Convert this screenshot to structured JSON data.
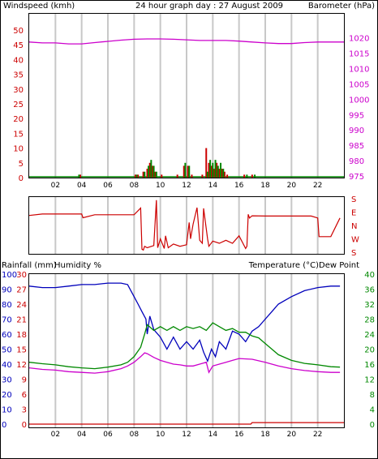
{
  "colors": {
    "wind": "#cc0000",
    "gust": "#008800",
    "baro": "#cc00cc",
    "dir": "#cc0000",
    "rain": "#cc0000",
    "humidity": "#0000bb",
    "temperature": "#008800",
    "dewpoint": "#cc00cc",
    "grid": "#c8c8c8",
    "text": "#000000"
  },
  "chart_data": [
    {
      "type": "bar",
      "title": "24 hour graph day : 27 August 2009",
      "ylabel_left": "Windspeed (kmh)",
      "ylabel_right": "Barometer (hPa)",
      "xticks": [
        "02",
        "04",
        "06",
        "08",
        "10",
        "12",
        "14",
        "16",
        "18",
        "20",
        "22"
      ],
      "yticks_left": [
        "50",
        "45",
        "40",
        "35",
        "30",
        "25",
        "20",
        "15",
        "10",
        "5",
        "0"
      ],
      "yticks_right": [
        "1020",
        "1015",
        "1010",
        "1005",
        "1000",
        "995",
        "990",
        "985",
        "980",
        "975"
      ],
      "ylim_left": [
        0,
        50
      ],
      "ylim_right": [
        974.5,
        1022.5
      ],
      "grid": true,
      "series": [
        {
          "name": "",
          "style": "line",
          "axis": "right",
          "x": [
            0,
            1,
            2,
            3,
            4,
            5,
            6,
            7,
            8,
            9,
            10,
            11,
            12,
            13,
            14,
            15,
            16,
            17,
            18,
            19,
            20,
            21,
            22,
            23,
            24
          ],
          "y": [
            1018.6,
            1018.3,
            1018.3,
            1018.0,
            1018.0,
            1018.4,
            1018.8,
            1019.2,
            1019.5,
            1019.6,
            1019.6,
            1019.5,
            1019.3,
            1019.1,
            1019.1,
            1019.1,
            1018.9,
            1018.6,
            1018.3,
            1018.1,
            1018.1,
            1018.4,
            1018.6,
            1018.6,
            1018.6
          ]
        },
        {
          "name": "",
          "style": "bar",
          "axis": "left",
          "x": [
            3.9,
            8.1,
            8.3,
            8.7,
            9.0,
            9.2,
            9.4,
            9.6,
            10.1,
            11.3,
            11.8,
            12.1,
            12.4,
            13.2,
            13.5,
            13.7,
            13.9,
            14.1,
            14.3,
            14.5,
            14.7,
            14.9,
            15.1,
            16.4,
            17.0
          ],
          "y": [
            1,
            1,
            1,
            2,
            3,
            5,
            4,
            2,
            1,
            1,
            4,
            4,
            1,
            1,
            10,
            5,
            4,
            3,
            5,
            3,
            3,
            2,
            1,
            1,
            1
          ]
        },
        {
          "name": "",
          "style": "bar",
          "axis": "left",
          "x": [
            3.8,
            8.2,
            8.8,
            9.1,
            9.3,
            9.5,
            9.7,
            11.9,
            12.2,
            13.6,
            13.8,
            14.0,
            14.2,
            14.4,
            14.6,
            14.8,
            16.6,
            17.2
          ],
          "y": [
            1,
            1,
            2,
            4,
            6,
            4,
            2,
            5,
            4,
            2,
            6,
            5,
            6,
            4,
            5,
            3,
            1,
            1
          ]
        }
      ]
    },
    {
      "type": "line",
      "title": "",
      "ylabel_right_ticks": [
        "S",
        "E",
        "N",
        "W",
        "S"
      ],
      "ylim": [
        0,
        360
      ],
      "xlim": [
        0,
        24
      ],
      "series": [
        {
          "name": "",
          "x": [
            0.0,
            1.0,
            2.0,
            3.0,
            4.0,
            4.1,
            5.0,
            6.0,
            7.0,
            8.0,
            8.5,
            8.6,
            8.7,
            8.8,
            9.0,
            9.5,
            9.7,
            9.8,
            10.0,
            10.3,
            10.4,
            10.6,
            11.0,
            11.5,
            12.0,
            12.2,
            12.3,
            12.5,
            12.8,
            13.0,
            13.2,
            13.3,
            13.6,
            13.7,
            14.0,
            14.5,
            15.0,
            15.5,
            16.0,
            16.5,
            16.6,
            16.7,
            16.8,
            17.0,
            18.0,
            19.0,
            20.0,
            20.5,
            21.0,
            21.5,
            22.0,
            22.1,
            23.0,
            23.7
          ],
          "y": [
            247,
            257,
            257,
            257,
            257,
            232,
            252,
            252,
            252,
            252,
            297,
            20,
            15,
            40,
            30,
            45,
            350,
            30,
            90,
            25,
            110,
            30,
            55,
            40,
            50,
            200,
            90,
            190,
            300,
            80,
            60,
            295,
            90,
            40,
            75,
            60,
            80,
            60,
            110,
            25,
            40,
            255,
            230,
            245,
            243,
            243,
            243,
            243,
            243,
            243,
            230,
            105,
            105,
            230
          ]
        }
      ]
    },
    {
      "type": "line",
      "title": "",
      "ylabel_left_rain": "Rainfall (mm)",
      "ylabel_left_hum": "Humidity %",
      "ylabel_right": "Temperature (°C)",
      "ylabel_right2": "Dew Point",
      "yticks_rain": [
        "30",
        "27",
        "24",
        "21",
        "18",
        "15",
        "12",
        "9",
        "6",
        "3",
        "0"
      ],
      "yticks_hum": [
        "100",
        "90",
        "80",
        "70",
        "60",
        "50",
        "40",
        "30",
        "20",
        "10",
        "0"
      ],
      "yticks_temp": [
        "40",
        "36",
        "32",
        "28",
        "24",
        "20",
        "16",
        "12",
        "8",
        "4",
        "0"
      ],
      "ylim_temp": [
        0,
        40
      ],
      "ylim_hum": [
        0,
        100
      ],
      "ylim_rain": [
        0,
        30
      ],
      "xlim": [
        0,
        24
      ],
      "series": [
        {
          "name": "Humidity %",
          "axis": "hum",
          "x": [
            0,
            1,
            2,
            3,
            4,
            5,
            6,
            7,
            7.5,
            8.0,
            8.3,
            8.6,
            8.9,
            9.0,
            9.2,
            9.5,
            10.0,
            10.5,
            11.0,
            11.5,
            12.0,
            12.5,
            13.0,
            13.3,
            13.6,
            13.9,
            14.2,
            14.5,
            15.0,
            15.5,
            16.0,
            16.5,
            17.0,
            17.5,
            18.0,
            18.5,
            19.0,
            20.0,
            21.0,
            22.0,
            23.0,
            23.7
          ],
          "y": [
            92,
            91,
            91,
            92,
            93,
            93,
            94,
            94,
            93,
            85,
            80,
            75,
            70,
            60,
            72,
            63,
            58,
            50,
            58,
            50,
            55,
            50,
            56,
            48,
            42,
            50,
            45,
            55,
            50,
            62,
            60,
            55,
            62,
            65,
            70,
            75,
            80,
            85,
            89,
            91,
            92,
            92
          ]
        },
        {
          "name": "Temperature (°C)",
          "axis": "temp",
          "x": [
            0,
            1,
            2,
            3,
            4,
            5,
            6,
            7,
            7.5,
            8.0,
            8.5,
            8.8,
            9.0,
            9.5,
            10.0,
            10.5,
            11.0,
            11.5,
            12.0,
            12.5,
            13.0,
            13.5,
            14.0,
            14.5,
            15.0,
            15.5,
            16.0,
            16.5,
            17.0,
            17.5,
            18.0,
            18.5,
            19.0,
            20.0,
            21.0,
            22.0,
            23.0,
            23.7
          ],
          "y": [
            16.5,
            16.1,
            15.8,
            15.3,
            15.0,
            14.8,
            15.2,
            15.8,
            16.5,
            18.0,
            20.5,
            24.0,
            26.5,
            25.0,
            26.0,
            25.0,
            26.0,
            25.0,
            26.0,
            25.5,
            26.0,
            25.0,
            27.0,
            26.0,
            25.0,
            25.5,
            24.5,
            24.5,
            23.5,
            23.0,
            21.5,
            20.0,
            18.5,
            17.0,
            16.2,
            15.8,
            15.3,
            15.2
          ]
        },
        {
          "name": "Dew Point",
          "axis": "temp",
          "x": [
            0,
            1,
            2,
            3,
            4,
            5,
            6,
            7,
            7.5,
            8.0,
            8.5,
            8.8,
            9.0,
            9.5,
            10.0,
            10.5,
            11.0,
            11.5,
            12.0,
            12.5,
            13.0,
            13.5,
            13.7,
            14.0,
            14.5,
            15.0,
            15.5,
            16.0,
            17.0,
            18.0,
            19.0,
            20.0,
            21.0,
            22.0,
            23.0,
            23.7
          ],
          "y": [
            15.0,
            14.6,
            14.4,
            14.0,
            13.8,
            13.6,
            14.0,
            14.8,
            15.5,
            16.5,
            18.0,
            19.0,
            18.8,
            17.8,
            17.0,
            16.5,
            16.0,
            15.8,
            15.5,
            15.5,
            16.0,
            16.5,
            13.8,
            15.5,
            16.0,
            16.5,
            17.0,
            17.5,
            17.3,
            16.5,
            15.5,
            14.8,
            14.3,
            14.0,
            13.8,
            13.8
          ]
        },
        {
          "name": "Rainfall (mm)",
          "axis": "rain",
          "x": [
            0,
            16.9,
            17.0,
            24
          ],
          "y": [
            0,
            0,
            0.3,
            0.3
          ]
        }
      ]
    }
  ]
}
